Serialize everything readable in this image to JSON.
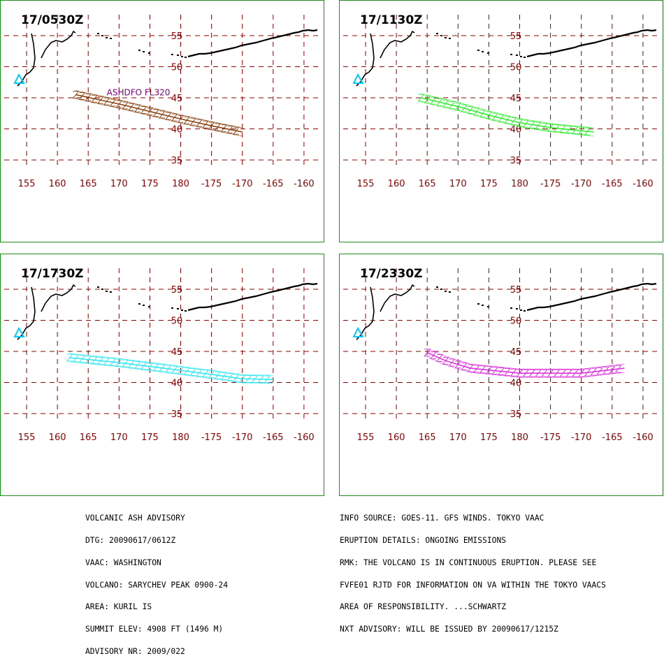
{
  "panels": [
    {
      "title": "17/0530Z",
      "ash_color": "#8b4513",
      "annotation": "ASHDFO FL320",
      "plume": [
        [
          163,
          45.5
        ],
        [
          170,
          44
        ],
        [
          175,
          42.8
        ],
        [
          180,
          41.6
        ],
        [
          185,
          40.5
        ],
        [
          190,
          39.5
        ]
      ]
    },
    {
      "title": "17/1130Z",
      "ash_color": "#33ee33",
      "annotation": "",
      "plume": [
        [
          164,
          45
        ],
        [
          170,
          43.6
        ],
        [
          175,
          42.2
        ],
        [
          180,
          41
        ],
        [
          185,
          40.2
        ],
        [
          192,
          39.5
        ]
      ]
    },
    {
      "title": "17/1730Z",
      "ash_color": "#33e8f0",
      "annotation": "",
      "plume": [
        [
          162,
          44
        ],
        [
          170,
          43.2
        ],
        [
          178,
          42.2
        ],
        [
          185,
          41.3
        ],
        [
          190,
          40.6
        ],
        [
          195,
          40.5
        ]
      ]
    },
    {
      "title": "17/2330Z",
      "ash_color": "#dd33dd",
      "annotation": "",
      "plume": [
        [
          165,
          44.8
        ],
        [
          168,
          43.5
        ],
        [
          172,
          42.3
        ],
        [
          180,
          41.5
        ],
        [
          190,
          41.5
        ],
        [
          197,
          42.3
        ]
      ]
    }
  ],
  "map": {
    "lat_labels": [
      "55",
      "50",
      "45",
      "40",
      "35"
    ],
    "lon_labels": [
      "155",
      "160",
      "165",
      "170",
      "175",
      "180",
      "-175",
      "-170",
      "-165",
      "-160"
    ],
    "volcano_symbol": "volcano-triangle-icon",
    "volcano_color": "#00ccff",
    "grid_color": "#8b0000"
  },
  "advisory_left": [
    "VOLCANIC ASH ADVISORY",
    "DTG: 20090617/0612Z",
    "VAAC: WASHINGTON",
    "VOLCANO: SARYCHEV PEAK 0900-24",
    "AREA: KURIL IS",
    "SUMMIT ELEV: 4908 FT (1496 M)",
    "ADVISORY NR: 2009/022"
  ],
  "advisory_right": [
    "INFO SOURCE: GOES-11. GFS WINDS. TOKYO VAAC",
    "ERUPTION DETAILS: ONGOING EMISSIONS",
    "RMK: THE VOLCANO IS IN CONTINUOUS ERUPTION. PLEASE SEE",
    "FVFE01 RJTD FOR INFORMATION ON VA WITHIN THE TOKYO VAACS",
    "AREA OF RESPONSIBILITY. ...SCHWARTZ",
    "NXT ADVISORY: WILL BE ISSUED BY 20090617/1215Z"
  ]
}
